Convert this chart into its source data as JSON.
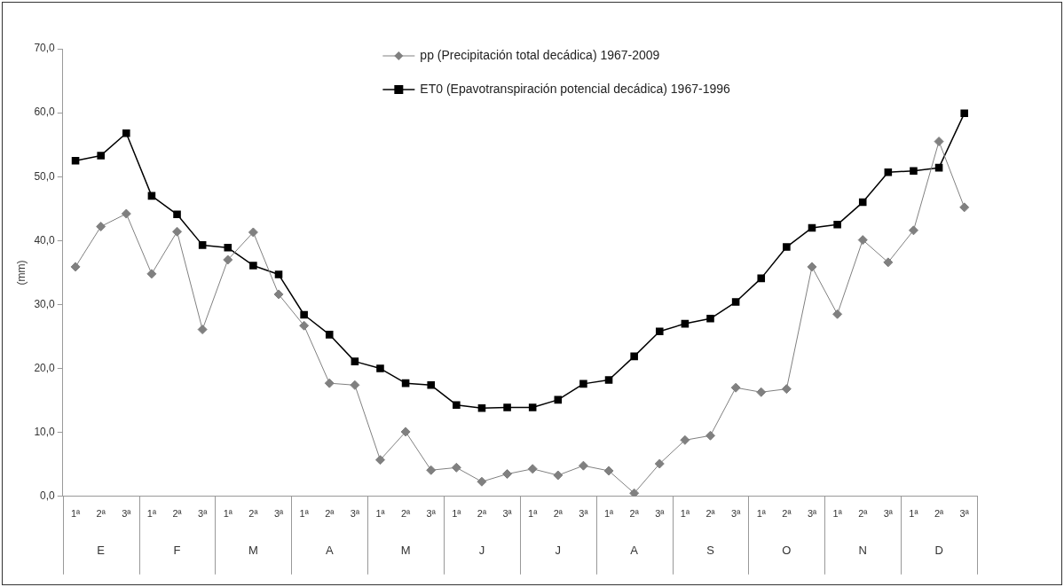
{
  "chart_data": {
    "type": "line",
    "ylabel": "(mm)",
    "categories": [
      "1ª",
      "2ª",
      "3ª",
      "1ª",
      "2ª",
      "3ª",
      "1ª",
      "2ª",
      "3ª",
      "1ª",
      "2ª",
      "3ª",
      "1ª",
      "2ª",
      "3ª",
      "1ª",
      "2ª",
      "3ª",
      "1ª",
      "2ª",
      "3ª",
      "1ª",
      "2ª",
      "3ª",
      "1ª",
      "2ª",
      "3ª",
      "1ª",
      "2ª",
      "3ª",
      "1ª",
      "2ª",
      "3ª",
      "1ª",
      "2ª",
      "3ª"
    ],
    "annotations": [
      "E",
      "F",
      "M",
      "A",
      "M",
      "J",
      "J",
      "A",
      "S",
      "O",
      "N",
      "D"
    ],
    "series": [
      {
        "name": "pp (Precipitación total decádica) 1967-2009",
        "color": "#808080",
        "marker": "diamond",
        "values": [
          35.9,
          42.2,
          44.2,
          34.8,
          41.4,
          26.1,
          37.0,
          41.3,
          31.6,
          26.7,
          17.7,
          17.4,
          5.7,
          10.1,
          4.1,
          4.5,
          2.3,
          3.5,
          4.3,
          3.3,
          4.8,
          4.0,
          0.5,
          5.1,
          8.8,
          9.5,
          17.0,
          16.3,
          16.8,
          35.9,
          28.5,
          40.1,
          36.6,
          41.6,
          55.5,
          45.2
        ]
      },
      {
        "name": "ET0 (Epavotranspiración potencial decádica) 1967-1996",
        "color": "#000000",
        "marker": "square",
        "values": [
          52.5,
          53.3,
          56.8,
          47.0,
          44.1,
          39.3,
          38.9,
          36.1,
          34.7,
          28.4,
          25.3,
          21.1,
          20.0,
          17.7,
          17.4,
          14.3,
          13.8,
          13.9,
          13.9,
          15.1,
          17.6,
          18.2,
          21.9,
          25.8,
          27.0,
          27.8,
          30.4,
          34.1,
          39.0,
          42.0,
          42.5,
          46.0,
          50.7,
          50.9,
          51.4,
          59.9
        ]
      }
    ],
    "ylim": [
      0,
      70
    ],
    "yticks": [
      {
        "value": 0,
        "label": "0,0"
      },
      {
        "value": 10,
        "label": "10,0"
      },
      {
        "value": 20,
        "label": "20,0"
      },
      {
        "value": 30,
        "label": "30,0"
      },
      {
        "value": 40,
        "label": "40,0"
      },
      {
        "value": 50,
        "label": "50,0"
      },
      {
        "value": 60,
        "label": "60,0"
      },
      {
        "value": 70,
        "label": "70,0"
      }
    ],
    "grid": false,
    "legend": "top",
    "line_style": "solid"
  }
}
